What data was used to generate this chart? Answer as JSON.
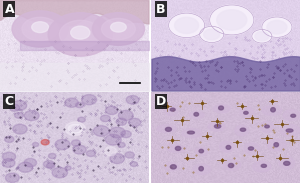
{
  "figsize": [
    3.0,
    1.83
  ],
  "dpi": 100,
  "panels": [
    "A",
    "B",
    "C",
    "D"
  ],
  "label_color": "white",
  "label_fontsize": 9,
  "label_fontweight": "bold",
  "background_color": "#ffffff",
  "panel_A": {
    "bg_r": 0.92,
    "bg_g": 0.88,
    "bg_b": 0.94,
    "skin_color": "#c8a8b8",
    "lobe_color": "#d4b8d8",
    "lobe_inner": "#e0c8e4",
    "lobe_center": "#f0e8f4",
    "dermis_color": "#ece8f0",
    "cell_color": "#8a6a9a"
  },
  "panel_B": {
    "bg_r": 0.88,
    "bg_g": 0.82,
    "bg_b": 0.92,
    "base_color": "#7060a0",
    "cell_color": "#4a3070",
    "ring_outer": "#f8f2fc",
    "ring_inner": "#ece4f4",
    "ring_edge": "#c0a8d0",
    "mid_cell": "#9070b0"
  },
  "panel_C": {
    "bg_r": 0.85,
    "bg_g": 0.8,
    "bg_b": 0.88,
    "cluster_color": "#9878b0",
    "cell_color": "#6a4a8a",
    "dark_dot": "#2a1a3a",
    "ghost_color": "#f0e8f4",
    "ghost_inner": "#f8f4fc",
    "vessel_color": "#d04040"
  },
  "panel_D": {
    "bg_r": 0.82,
    "bg_g": 0.74,
    "bg_b": 0.84,
    "cell_color": "#d0b8d8",
    "nucleus_color": "#7a5888",
    "melanocyte_color": "#7a5010",
    "dendrite_color": "#6b4008",
    "pigment_color": "#8b6010"
  }
}
